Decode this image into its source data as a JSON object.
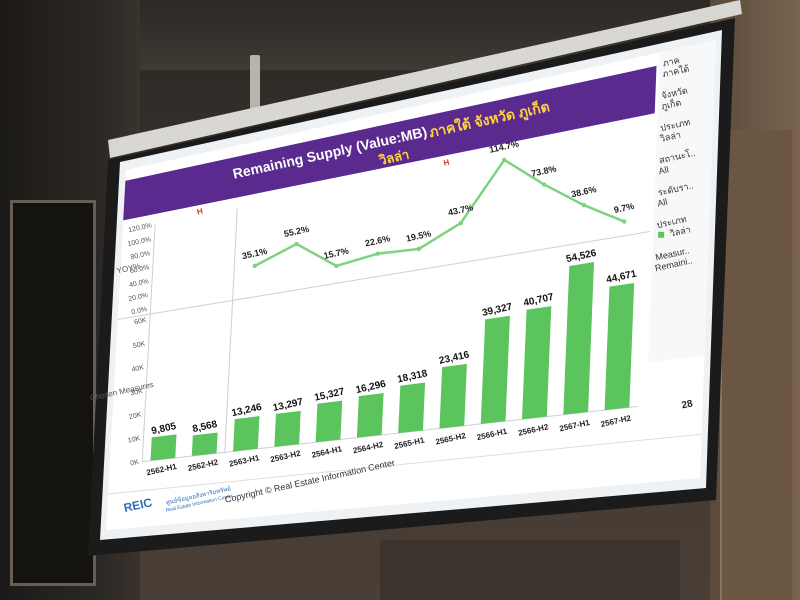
{
  "slide": {
    "title": "Remaining Supply (Value:MB)",
    "title_region": "ภาคใต้ จังหวัด ภูเก็ต",
    "subtitle": "วิลล่า",
    "page_number": "28",
    "copyright": "Copyright © Real Estate Information Center",
    "logo_text": "REIC",
    "logo_caption_th": "ศูนย์ข้อมูลอสังหาริมทรัพย์",
    "logo_caption_en": "Real Estate Information Center",
    "h_marker": "H"
  },
  "filters": [
    {
      "label": "ภาค",
      "value": "ภาคใต้"
    },
    {
      "label": "จังหวัด",
      "value": "ภูเก็ต"
    },
    {
      "label": "ประเภท",
      "value": "วิลล่า"
    },
    {
      "label": "สถานะโ..",
      "value": "All"
    },
    {
      "label": "ระดับรา..",
      "value": "All"
    },
    {
      "label": "ประเภท",
      "value": "วิลล่า",
      "legend": true
    },
    {
      "label": "Measur..",
      "value": "Remaini.."
    }
  ],
  "chart_data": [
    {
      "type": "line",
      "ylabel": "YOY%",
      "ylim": [
        0,
        120
      ],
      "y_ticks": [
        "0.0%",
        "20.0%",
        "40.0%",
        "60.0%",
        "80.0%",
        "100.0%",
        "120.0%"
      ],
      "categories": [
        "2562-H1",
        "2562-H2",
        "2563-H1",
        "2563-H2",
        "2564-H1",
        "2564-H2",
        "2565-H1",
        "2565-H2",
        "2566-H1",
        "2566-H2",
        "2567-H1",
        "2567-H2"
      ],
      "values": [
        null,
        null,
        35.1,
        55.2,
        15.7,
        22.6,
        19.5,
        43.7,
        114.7,
        73.8,
        38.6,
        9.7
      ],
      "labels": [
        "",
        "",
        "35.1%",
        "55.2%",
        "15.7%",
        "22.6%",
        "19.5%",
        "43.7%",
        "114.7%",
        "73.8%",
        "38.6%",
        "9.7%"
      ],
      "color": "#7ed37e"
    },
    {
      "type": "bar",
      "ylabel": "Chosen Measures",
      "ylim": [
        0,
        60000
      ],
      "y_ticks": [
        "0K",
        "10K",
        "20K",
        "30K",
        "40K",
        "50K",
        "60K"
      ],
      "categories": [
        "2562-H1",
        "2562-H2",
        "2563-H1",
        "2563-H2",
        "2564-H1",
        "2564-H2",
        "2565-H1",
        "2565-H2",
        "2566-H1",
        "2566-H2",
        "2567-H1",
        "2567-H2"
      ],
      "values": [
        9805,
        8568,
        13246,
        13297,
        15327,
        16296,
        18318,
        23416,
        39327,
        40707,
        54526,
        44671
      ],
      "labels": [
        "9,805",
        "8,568",
        "13,246",
        "13,297",
        "15,327",
        "16,296",
        "18,318",
        "23,416",
        "39,327",
        "40,707",
        "54,526",
        "44,671"
      ],
      "color": "#5cc45c"
    }
  ],
  "colors": {
    "title_band": "#5b2a8f",
    "title_text": "#ffffff",
    "region_text": "#ffd23c",
    "bar": "#5cc45c",
    "line": "#7ed37e",
    "slide_bg": "#ffffff",
    "h_marker": "#d23b2a"
  }
}
